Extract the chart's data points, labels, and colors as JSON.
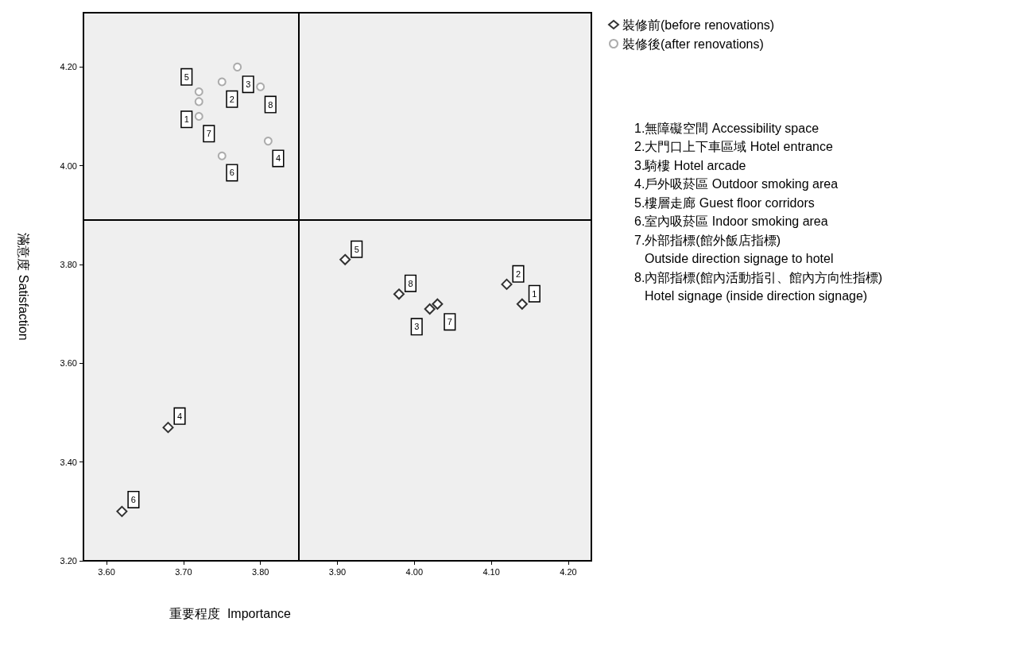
{
  "chart_data": {
    "type": "scatter",
    "xlabel": "重要程度  Importance",
    "ylabel": "滿意度 Satisfaction",
    "xlim": [
      3.57,
      4.23
    ],
    "ylim": [
      3.2,
      4.31
    ],
    "xticks": [
      {
        "value": 3.6,
        "label": "3.60"
      },
      {
        "value": 3.7,
        "label": "3.70"
      },
      {
        "value": 3.8,
        "label": "3.80"
      },
      {
        "value": 3.9,
        "label": "3.90"
      },
      {
        "value": 4.0,
        "label": "4.00"
      },
      {
        "value": 4.1,
        "label": "4.10"
      },
      {
        "value": 4.2,
        "label": "4.20"
      }
    ],
    "yticks": [
      {
        "value": 3.2,
        "label": "3.20"
      },
      {
        "value": 3.4,
        "label": "3.40"
      },
      {
        "value": 3.6,
        "label": "3.60"
      },
      {
        "value": 3.8,
        "label": "3.80"
      },
      {
        "value": 4.0,
        "label": "4.00"
      },
      {
        "value": 4.2,
        "label": "4.20"
      }
    ],
    "series": [
      {
        "name": "裝修前(before renovations)",
        "color": "#000000",
        "marker": "diamond",
        "x": [
          4.14,
          4.12,
          4.02,
          3.68,
          3.91,
          3.62,
          4.03,
          3.98
        ],
        "values": [
          3.72,
          3.76,
          3.71,
          3.47,
          3.81,
          3.3,
          3.72,
          3.74
        ]
      },
      {
        "name": "裝修後(after renovations)",
        "color": "#999999",
        "marker": "circle",
        "x": [
          3.72,
          3.75,
          3.77,
          3.81,
          3.72,
          3.75,
          3.72,
          3.8
        ],
        "values": [
          4.13,
          4.17,
          4.2,
          4.05,
          4.15,
          4.02,
          4.1,
          4.16
        ]
      }
    ],
    "ref_lines": [
      {
        "axis": "x",
        "value": 3.85
      },
      {
        "axis": "y",
        "value": 3.89
      }
    ],
    "legend": "top right",
    "grid": false,
    "annotations": [
      "1.無障礙空間 Accessibility space",
      "2.大門口上下車區域 Hotel entrance",
      "3.騎樓 Hotel arcade",
      "4.戶外吸菸區 Outdoor smoking area",
      "5.樓層走廊 Guest floor corridors",
      "6.室內吸菸區 Indoor smoking area",
      "7.外部指標(館外飯店指標)\nOutside direction signage to hotel",
      "8.內部指標(館內活動指引、館內方向性指標)\nHotel signage (inside direction signage)",
      {
        "text": "5",
        "x": 3.704,
        "y": 4.18
      },
      {
        "text": "2",
        "x": 3.763,
        "y": 4.135
      },
      {
        "text": "3",
        "x": 3.784,
        "y": 4.165
      },
      {
        "text": "8",
        "x": 3.813,
        "y": 4.124
      },
      {
        "text": "1",
        "x": 3.704,
        "y": 4.094
      },
      {
        "text": "7",
        "x": 3.733,
        "y": 4.065
      },
      {
        "text": "6",
        "x": 3.763,
        "y": 3.986
      },
      {
        "text": "4",
        "x": 3.823,
        "y": 4.015
      },
      {
        "text": "5",
        "x": 3.925,
        "y": 3.831
      },
      {
        "text": "8",
        "x": 3.995,
        "y": 3.762
      },
      {
        "text": "3",
        "x": 4.003,
        "y": 3.674
      },
      {
        "text": "7",
        "x": 4.046,
        "y": 3.684
      },
      {
        "text": "2",
        "x": 4.135,
        "y": 3.781
      },
      {
        "text": "1",
        "x": 4.156,
        "y": 3.741
      },
      {
        "text": "4",
        "x": 3.695,
        "y": 3.493
      },
      {
        "text": "6",
        "x": 3.635,
        "y": 3.324
      }
    ]
  }
}
